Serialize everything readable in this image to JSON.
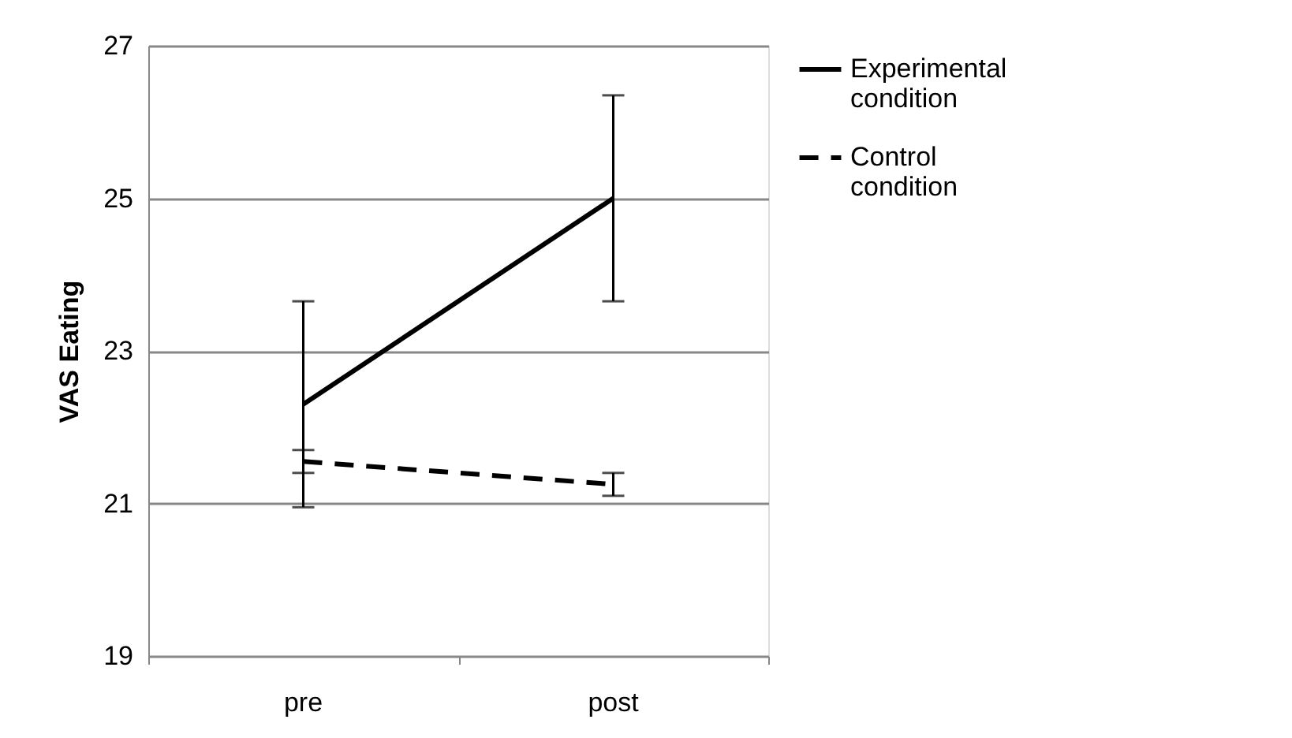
{
  "chart_data": {
    "type": "line",
    "ylabel": "VAS Eating",
    "categories": [
      "pre",
      "post"
    ],
    "series": [
      {
        "name": "Experimental condition",
        "color": "#000000",
        "line_style": "solid",
        "values": [
          22.3,
          25.0
        ],
        "errors": [
          1.35,
          1.35
        ]
      },
      {
        "name": "Control condition",
        "color": "#000000",
        "line_style": "dashed",
        "values": [
          21.55,
          21.25
        ],
        "errors": [
          0.15,
          0.15
        ]
      }
    ],
    "ylim": [
      19,
      27
    ],
    "yticks": [
      19,
      21,
      23,
      25,
      27
    ],
    "grid": "y",
    "legend": "right",
    "marker": "none"
  }
}
